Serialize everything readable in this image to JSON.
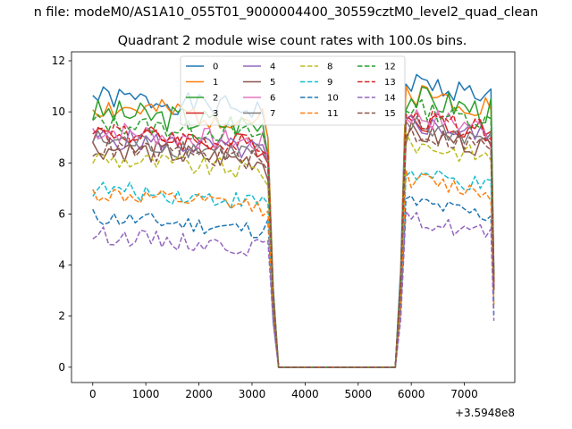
{
  "suptitle": "n file: modeM0/AS1A10_055T01_9000004400_30559cztM0_level2_quad_clean",
  "chart_data": {
    "type": "line",
    "title": "Quadrant 2 module wise count rates with 100.0s bins.",
    "xlabel": "",
    "ylabel": "",
    "x_offset_label": "+3.5948e8",
    "xlim": [
      -400,
      7950
    ],
    "ylim": [
      -0.6,
      12.35
    ],
    "xticks": [
      0,
      1000,
      2000,
      3000,
      4000,
      5000,
      6000,
      7000
    ],
    "yticks": [
      0,
      2,
      4,
      6,
      8,
      10,
      12
    ],
    "legend_placement": "top-center",
    "grid": false,
    "series": [
      {
        "name": "0",
        "color": "#1f77b4",
        "dash": "solid",
        "level": 10.6,
        "amp": 0.45
      },
      {
        "name": "1",
        "color": "#ff7f0e",
        "dash": "solid",
        "level": 10.2,
        "amp": 0.5
      },
      {
        "name": "2",
        "color": "#2ca02c",
        "dash": "solid",
        "level": 10.0,
        "amp": 0.55
      },
      {
        "name": "3",
        "color": "#d62728",
        "dash": "solid",
        "level": 9.2,
        "amp": 0.45
      },
      {
        "name": "4",
        "color": "#9467bd",
        "dash": "solid",
        "level": 9.0,
        "amp": 0.45
      },
      {
        "name": "5",
        "color": "#8c564b",
        "dash": "solid",
        "level": 8.6,
        "amp": 0.45
      },
      {
        "name": "6",
        "color": "#e377c2",
        "dash": "solid",
        "level": 9.3,
        "amp": 0.45
      },
      {
        "name": "7",
        "color": "#7f7f7f",
        "dash": "solid",
        "level": 8.9,
        "amp": 0.45
      },
      {
        "name": "8",
        "color": "#bcbd22",
        "dash": "dashed",
        "level": 8.2,
        "amp": 0.4
      },
      {
        "name": "9",
        "color": "#17becf",
        "dash": "dashed",
        "level": 7.0,
        "amp": 0.35
      },
      {
        "name": "10",
        "color": "#1f77b4",
        "dash": "dashed",
        "level": 5.9,
        "amp": 0.35
      },
      {
        "name": "11",
        "color": "#ff7f0e",
        "dash": "dashed",
        "level": 6.8,
        "amp": 0.35
      },
      {
        "name": "12",
        "color": "#2ca02c",
        "dash": "dashed",
        "level": 9.6,
        "amp": 0.4
      },
      {
        "name": "13",
        "color": "#d62728",
        "dash": "dashed",
        "level": 9.2,
        "amp": 0.4
      },
      {
        "name": "14",
        "color": "#9467bd",
        "dash": "dashed",
        "level": 5.2,
        "amp": 0.35
      },
      {
        "name": "15",
        "color": "#8c564b",
        "dash": "dashed",
        "level": 8.6,
        "amp": 0.4
      }
    ]
  }
}
